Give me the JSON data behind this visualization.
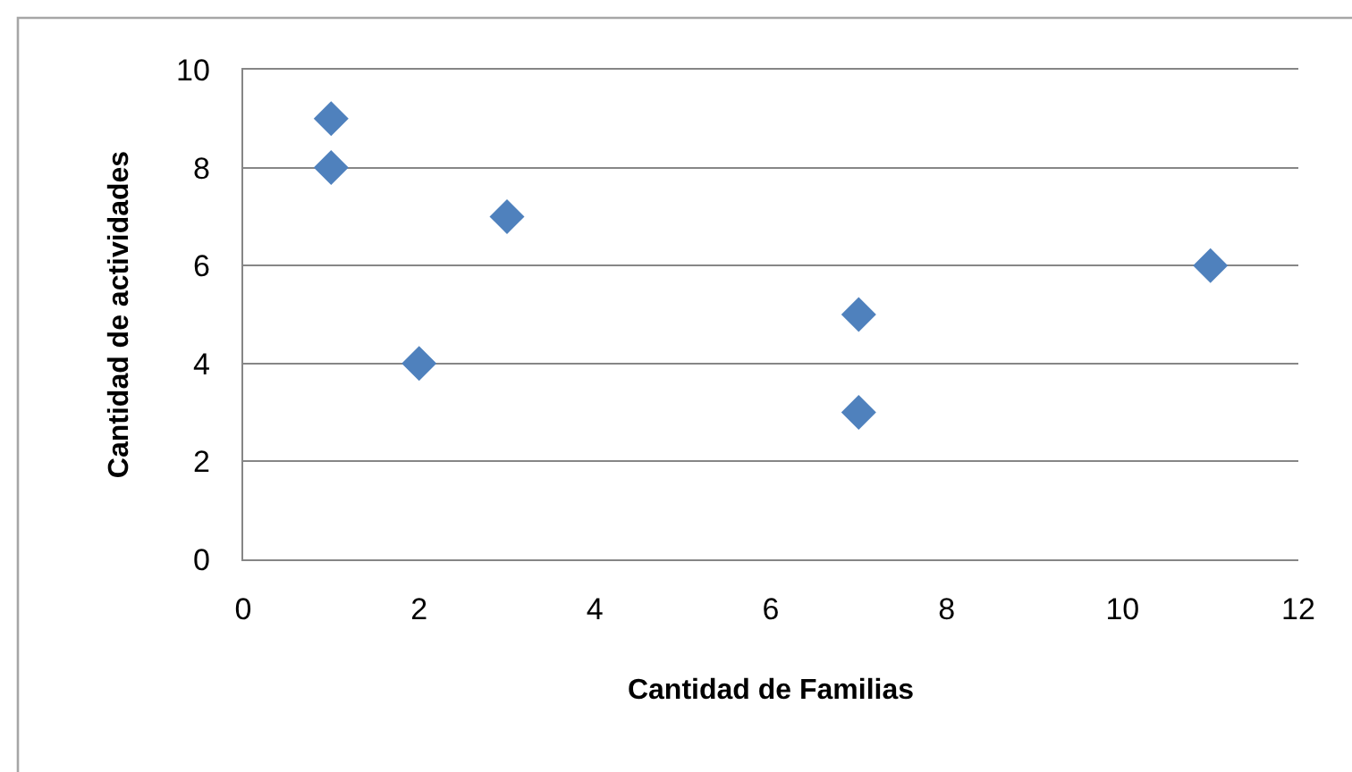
{
  "chart_data": {
    "type": "scatter",
    "xlabel": "Cantidad de Familias",
    "ylabel": "Cantidad de actividades",
    "x": [
      1,
      1,
      2,
      3,
      7,
      7,
      11
    ],
    "values": [
      9,
      8,
      4,
      7,
      5,
      3,
      6
    ],
    "color": "#4f81bd",
    "marker": "diamond",
    "xlim": [
      0,
      12
    ],
    "xticks": [
      0,
      2,
      4,
      6,
      8,
      10,
      12
    ],
    "ylim": [
      0,
      10
    ],
    "yticks": [
      0,
      2,
      4,
      6,
      8,
      10
    ],
    "grid": "y"
  }
}
